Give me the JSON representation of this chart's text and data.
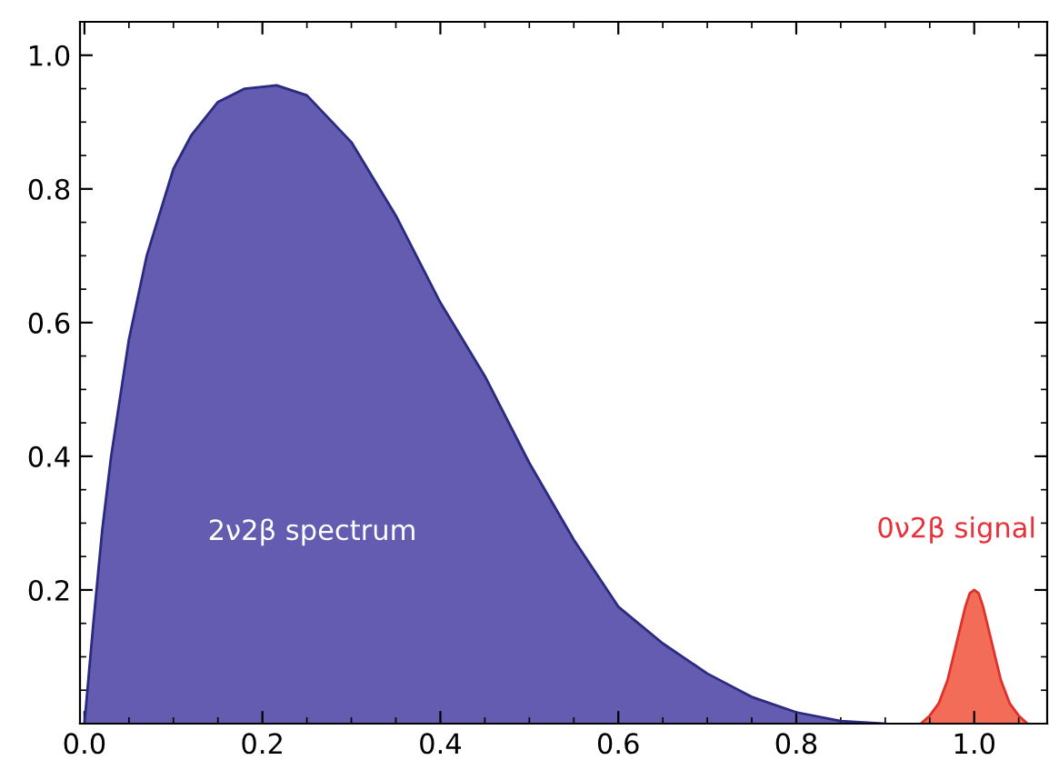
{
  "chart_data": {
    "type": "area",
    "series": [
      {
        "name": "2ν2β spectrum",
        "color": "#635cb0",
        "x": [
          0.0,
          0.01,
          0.02,
          0.03,
          0.05,
          0.07,
          0.1,
          0.12,
          0.15,
          0.18,
          0.216,
          0.25,
          0.3,
          0.35,
          0.4,
          0.45,
          0.5,
          0.55,
          0.6,
          0.65,
          0.7,
          0.75,
          0.8,
          0.85,
          0.9
        ],
        "values": [
          0.0,
          0.15,
          0.29,
          0.4,
          0.575,
          0.7,
          0.83,
          0.88,
          0.93,
          0.95,
          0.955,
          0.94,
          0.87,
          0.76,
          0.63,
          0.52,
          0.39,
          0.275,
          0.175,
          0.12,
          0.075,
          0.04,
          0.017,
          0.004,
          0.0
        ]
      },
      {
        "name": "0ν2β signal",
        "color": "#f26c58",
        "x": [
          0.94,
          0.95,
          0.96,
          0.97,
          0.98,
          0.99,
          0.995,
          1.0,
          1.005,
          1.01,
          1.02,
          1.03,
          1.04,
          1.05,
          1.06
        ],
        "values": [
          0.0,
          0.012,
          0.03,
          0.065,
          0.12,
          0.175,
          0.195,
          0.2,
          0.195,
          0.175,
          0.12,
          0.065,
          0.03,
          0.012,
          0.0
        ]
      }
    ],
    "xlim": [
      -0.005,
      1.082
    ],
    "ylim": [
      0,
      1.05
    ],
    "xticks": [
      {
        "value": 0,
        "label": "0.0"
      },
      0.2,
      0.4,
      0.6,
      0.8,
      {
        "value": 1,
        "label": "1.0"
      }
    ],
    "yticks": [
      0.2,
      0.4,
      0.6,
      0.8,
      {
        "value": 1,
        "label": "1.0"
      }
    ],
    "grid": false,
    "legend": false
  }
}
